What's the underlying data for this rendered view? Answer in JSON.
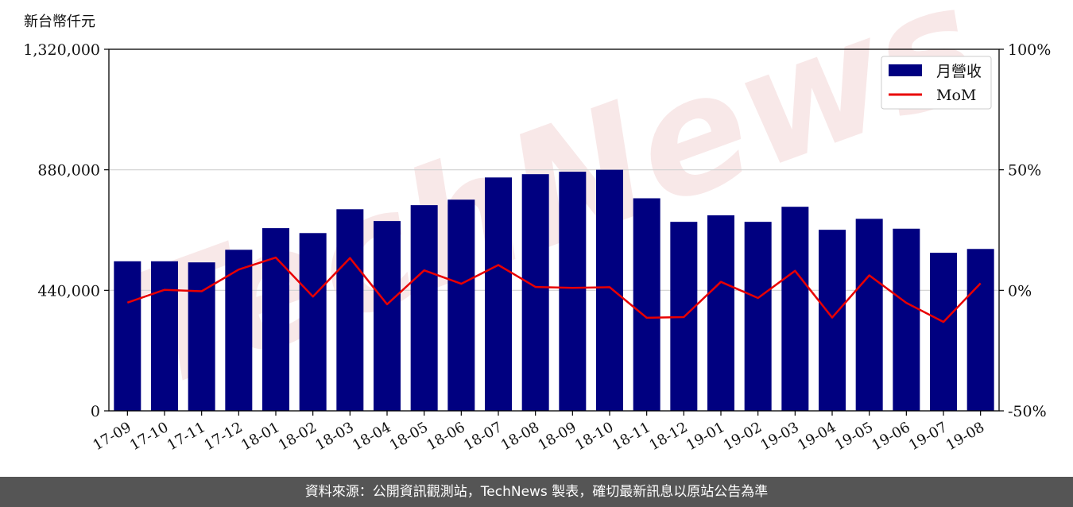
{
  "chart_data": {
    "type": "bar",
    "y_unit_label": "新台幣仟元",
    "categories": [
      "17-09",
      "17-10",
      "17-11",
      "17-12",
      "18-01",
      "18-02",
      "18-03",
      "18-04",
      "18-05",
      "18-06",
      "18-07",
      "18-08",
      "18-09",
      "18-10",
      "18-11",
      "18-12",
      "19-01",
      "19-02",
      "19-03",
      "19-04",
      "19-05",
      "19-06",
      "19-07",
      "19-08"
    ],
    "series": [
      {
        "name": "月營收",
        "type": "bar",
        "axis": "left",
        "color": "#000080",
        "values": [
          546000,
          546000,
          542000,
          588000,
          667000,
          649000,
          736000,
          693000,
          751000,
          771000,
          852000,
          864000,
          873000,
          880000,
          776000,
          690000,
          714000,
          690000,
          745000,
          661000,
          701000,
          665000,
          577000,
          591000
        ]
      },
      {
        "name": "MoM",
        "type": "line",
        "axis": "right",
        "color": "#e80000",
        "values": [
          -5.1,
          0.2,
          -0.4,
          8.6,
          13.6,
          -2.6,
          13.4,
          -5.8,
          8.3,
          2.7,
          10.5,
          1.4,
          1.0,
          1.3,
          -11.4,
          -11.1,
          3.5,
          -3.2,
          8.1,
          -11.3,
          6.2,
          -5.2,
          -13.1,
          2.9
        ]
      }
    ],
    "y_left": {
      "min": 0,
      "max": 1320000,
      "ticks": [
        0,
        440000,
        880000,
        1320000
      ],
      "tick_labels": [
        "0",
        "440,000",
        "880,000",
        "1,320,000"
      ]
    },
    "y_right": {
      "min": -50,
      "max": 100,
      "ticks": [
        -50,
        0,
        50,
        100
      ],
      "tick_labels": [
        "-50%",
        "0%",
        "50%",
        "100%"
      ]
    },
    "grid": "horizontal",
    "legend": "top-right",
    "watermark": "TechNews"
  },
  "footer": {
    "source_text": "資料來源：公開資訊觀測站，TechNews 製表，確切最新訊息以原站公告為準"
  }
}
